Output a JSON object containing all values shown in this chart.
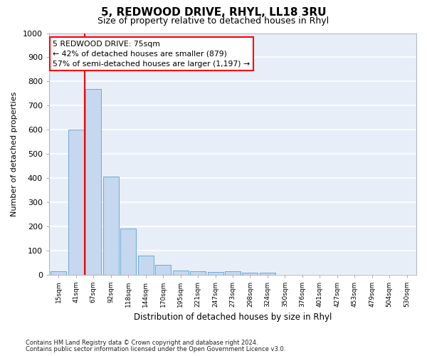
{
  "title": "5, REDWOOD DRIVE, RHYL, LL18 3RU",
  "subtitle": "Size of property relative to detached houses in Rhyl",
  "xlabel": "Distribution of detached houses by size in Rhyl",
  "ylabel": "Number of detached properties",
  "footnote1": "Contains HM Land Registry data © Crown copyright and database right 2024.",
  "footnote2": "Contains public sector information licensed under the Open Government Licence v3.0.",
  "bar_labels": [
    "15sqm",
    "41sqm",
    "67sqm",
    "92sqm",
    "118sqm",
    "144sqm",
    "170sqm",
    "195sqm",
    "221sqm",
    "247sqm",
    "273sqm",
    "298sqm",
    "324sqm",
    "350sqm",
    "376sqm",
    "401sqm",
    "427sqm",
    "453sqm",
    "479sqm",
    "504sqm",
    "530sqm"
  ],
  "bar_values": [
    15,
    600,
    770,
    405,
    190,
    78,
    40,
    18,
    15,
    10,
    15,
    8,
    7,
    0,
    0,
    0,
    0,
    0,
    0,
    0,
    0
  ],
  "bar_color": "#c5d8f0",
  "bar_edge_color": "#6aaad4",
  "vline_x": 1.5,
  "vline_color": "red",
  "ylim": [
    0,
    1000
  ],
  "yticks": [
    0,
    100,
    200,
    300,
    400,
    500,
    600,
    700,
    800,
    900,
    1000
  ],
  "annotation_text": "5 REDWOOD DRIVE: 75sqm\n← 42% of detached houses are smaller (879)\n57% of semi-detached houses are larger (1,197) →",
  "annotation_box_color": "white",
  "annotation_box_edge": "red",
  "bg_color": "#e8eef8",
  "grid_color": "white",
  "title_fontsize": 11,
  "subtitle_fontsize": 9
}
